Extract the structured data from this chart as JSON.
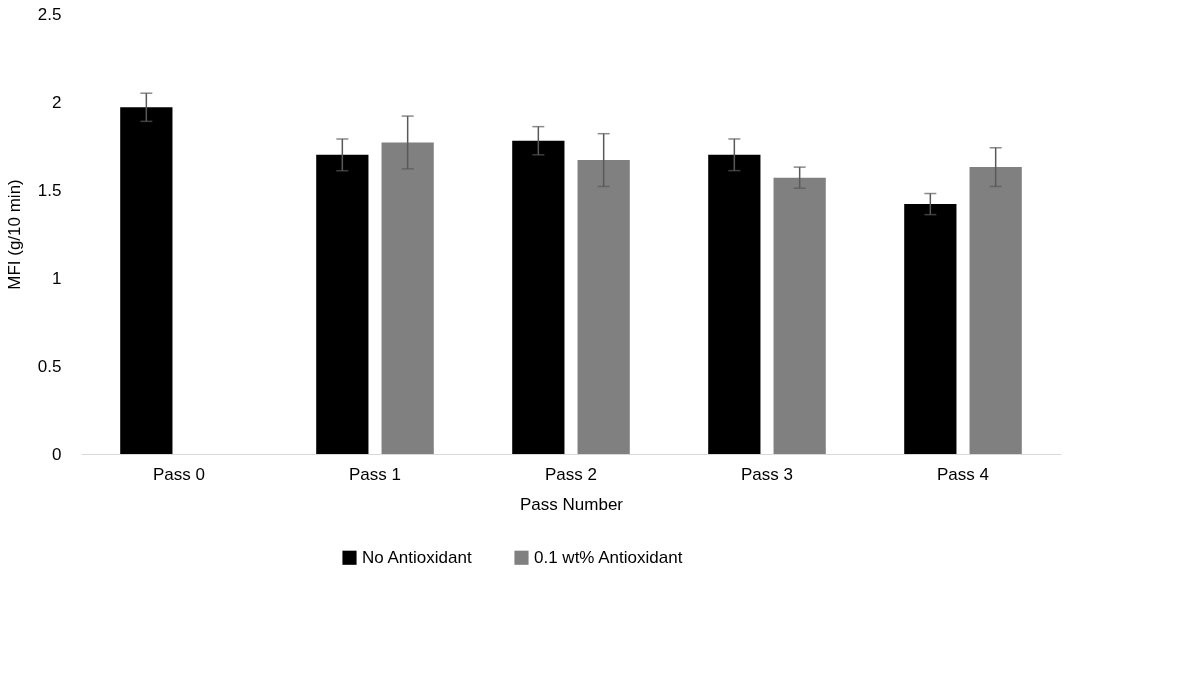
{
  "chart_data": {
    "type": "bar",
    "xlabel": "Pass Number",
    "ylabel": "MFI (g/10 min)",
    "categories": [
      "Pass 0",
      "Pass 1",
      "Pass 2",
      "Pass 3",
      "Pass 4"
    ],
    "series": [
      {
        "name": "No Antioxidant",
        "color": "#000000",
        "values": [
          1.97,
          1.7,
          1.78,
          1.7,
          1.42
        ],
        "errors": [
          0.08,
          0.09,
          0.08,
          0.09,
          0.06
        ]
      },
      {
        "name": "0.1 wt% Antioxidant",
        "color": "#808080",
        "values": [
          null,
          1.77,
          1.67,
          1.57,
          1.63
        ],
        "errors": [
          null,
          0.15,
          0.15,
          0.06,
          0.11
        ]
      }
    ],
    "ylim": [
      0,
      2.5
    ],
    "yticks": [
      0,
      0.5,
      1,
      1.5,
      2,
      2.5
    ],
    "grid": false,
    "legend": "bottom"
  }
}
